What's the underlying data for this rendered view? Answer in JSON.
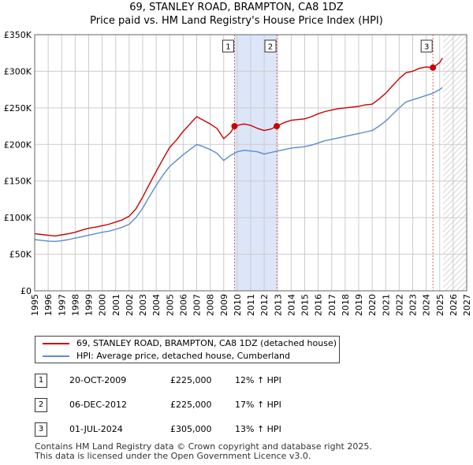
{
  "title_line1": "69, STANLEY ROAD, BRAMPTON, CA8 1DZ",
  "title_line2": "Price paid vs. HM Land Registry's House Price Index (HPI)",
  "colors": {
    "property": "#cc0000",
    "hpi": "#5b8ccc",
    "shade": "#dce6f8",
    "grid": "#cccccc"
  },
  "chart_data": {
    "type": "line",
    "title": "69, STANLEY ROAD, BRAMPTON, CA8 1DZ — Price paid vs. HM Land Registry's House Price Index (HPI)",
    "xlabel": "",
    "ylabel": "",
    "xlim": [
      1995,
      2027
    ],
    "ylim": [
      0,
      350000
    ],
    "y_ticks": [
      0,
      50000,
      100000,
      150000,
      200000,
      250000,
      300000,
      350000
    ],
    "y_tick_labels": [
      "£0",
      "£50K",
      "£100K",
      "£150K",
      "£200K",
      "£250K",
      "£300K",
      "£350K"
    ],
    "x_tick_labels": [
      "1995",
      "1996",
      "1997",
      "1998",
      "1999",
      "2000",
      "2001",
      "2002",
      "2003",
      "2004",
      "2005",
      "2006",
      "2007",
      "2008",
      "2009",
      "2010",
      "2011",
      "2012",
      "2013",
      "2014",
      "2015",
      "2016",
      "2017",
      "2018",
      "2019",
      "2020",
      "2021",
      "2022",
      "2023",
      "2024",
      "2025",
      "2026",
      "2027"
    ],
    "grid": true,
    "series": [
      {
        "name": "69, STANLEY ROAD, BRAMPTON, CA8 1DZ (detached house)",
        "points": [
          [
            1995.0,
            78000
          ],
          [
            1995.5,
            77000
          ],
          [
            1996.0,
            76000
          ],
          [
            1996.5,
            75000
          ],
          [
            1997.0,
            76500
          ],
          [
            1997.5,
            78000
          ],
          [
            1998.0,
            80000
          ],
          [
            1998.5,
            83000
          ],
          [
            1999.0,
            85500
          ],
          [
            1999.5,
            87000
          ],
          [
            2000.0,
            89000
          ],
          [
            2000.5,
            91000
          ],
          [
            2001.0,
            94000
          ],
          [
            2001.5,
            97000
          ],
          [
            2002.0,
            102000
          ],
          [
            2002.5,
            112000
          ],
          [
            2003.0,
            128000
          ],
          [
            2003.5,
            146000
          ],
          [
            2004.0,
            163000
          ],
          [
            2004.5,
            180000
          ],
          [
            2005.0,
            196000
          ],
          [
            2005.5,
            206000
          ],
          [
            2006.0,
            218000
          ],
          [
            2006.5,
            228000
          ],
          [
            2007.0,
            238000
          ],
          [
            2007.5,
            233000
          ],
          [
            2008.0,
            228000
          ],
          [
            2008.5,
            222000
          ],
          [
            2009.0,
            208000
          ],
          [
            2009.5,
            216000
          ],
          [
            2009.8,
            225000
          ],
          [
            2010.0,
            226000
          ],
          [
            2010.5,
            228000
          ],
          [
            2011.0,
            226000
          ],
          [
            2011.5,
            222000
          ],
          [
            2012.0,
            219000
          ],
          [
            2012.5,
            221000
          ],
          [
            2012.93,
            225000
          ],
          [
            2013.5,
            230000
          ],
          [
            2014.0,
            233000
          ],
          [
            2014.5,
            234000
          ],
          [
            2015.0,
            235000
          ],
          [
            2015.5,
            238000
          ],
          [
            2016.0,
            242000
          ],
          [
            2016.5,
            245000
          ],
          [
            2017.0,
            247000
          ],
          [
            2017.5,
            249000
          ],
          [
            2018.0,
            250000
          ],
          [
            2018.5,
            251000
          ],
          [
            2019.0,
            252000
          ],
          [
            2019.5,
            254000
          ],
          [
            2020.0,
            255000
          ],
          [
            2020.5,
            262000
          ],
          [
            2021.0,
            270000
          ],
          [
            2021.5,
            280000
          ],
          [
            2022.0,
            290000
          ],
          [
            2022.5,
            298000
          ],
          [
            2023.0,
            300000
          ],
          [
            2023.5,
            304000
          ],
          [
            2024.0,
            306000
          ],
          [
            2024.5,
            305000
          ],
          [
            2025.0,
            312000
          ],
          [
            2025.2,
            318000
          ]
        ]
      },
      {
        "name": "HPI: Average price, detached house, Cumberland",
        "points": [
          [
            1995.0,
            70000
          ],
          [
            1995.5,
            69000
          ],
          [
            1996.0,
            68000
          ],
          [
            1996.5,
            67500
          ],
          [
            1997.0,
            68500
          ],
          [
            1997.5,
            70000
          ],
          [
            1998.0,
            72000
          ],
          [
            1998.5,
            74000
          ],
          [
            1999.0,
            76000
          ],
          [
            1999.5,
            78000
          ],
          [
            2000.0,
            80000
          ],
          [
            2000.5,
            81500
          ],
          [
            2001.0,
            84000
          ],
          [
            2001.5,
            87000
          ],
          [
            2002.0,
            91000
          ],
          [
            2002.5,
            100000
          ],
          [
            2003.0,
            113000
          ],
          [
            2003.5,
            129000
          ],
          [
            2004.0,
            144000
          ],
          [
            2004.5,
            158000
          ],
          [
            2005.0,
            170000
          ],
          [
            2005.5,
            178000
          ],
          [
            2006.0,
            186000
          ],
          [
            2006.5,
            193000
          ],
          [
            2007.0,
            200000
          ],
          [
            2007.5,
            197000
          ],
          [
            2008.0,
            193000
          ],
          [
            2008.5,
            188000
          ],
          [
            2009.0,
            178000
          ],
          [
            2009.5,
            185000
          ],
          [
            2010.0,
            190000
          ],
          [
            2010.5,
            192000
          ],
          [
            2011.0,
            191000
          ],
          [
            2011.5,
            190000
          ],
          [
            2012.0,
            187000
          ],
          [
            2012.5,
            189000
          ],
          [
            2013.0,
            191000
          ],
          [
            2013.5,
            193000
          ],
          [
            2014.0,
            195000
          ],
          [
            2014.5,
            196000
          ],
          [
            2015.0,
            197000
          ],
          [
            2015.5,
            199000
          ],
          [
            2016.0,
            202000
          ],
          [
            2016.5,
            205000
          ],
          [
            2017.0,
            207000
          ],
          [
            2017.5,
            209000
          ],
          [
            2018.0,
            211000
          ],
          [
            2018.5,
            213000
          ],
          [
            2019.0,
            215000
          ],
          [
            2019.5,
            217000
          ],
          [
            2020.0,
            219000
          ],
          [
            2020.5,
            225000
          ],
          [
            2021.0,
            232000
          ],
          [
            2021.5,
            241000
          ],
          [
            2022.0,
            250000
          ],
          [
            2022.5,
            258000
          ],
          [
            2023.0,
            261000
          ],
          [
            2023.5,
            264000
          ],
          [
            2024.0,
            267000
          ],
          [
            2024.5,
            270000
          ],
          [
            2025.0,
            275000
          ],
          [
            2025.2,
            278000
          ]
        ]
      }
    ],
    "highlight_band": [
      2009.8,
      2012.93
    ],
    "forecast_start": 2025.25,
    "markers": [
      {
        "label": "1",
        "x": 2009.8,
        "y": 225000
      },
      {
        "label": "2",
        "x": 2012.93,
        "y": 225000
      },
      {
        "label": "3",
        "x": 2024.5,
        "y": 305000
      }
    ]
  },
  "legend": {
    "property_label": "69, STANLEY ROAD, BRAMPTON, CA8 1DZ (detached house)",
    "hpi_label": "HPI: Average price, detached house, Cumberland"
  },
  "sales": [
    {
      "num": "1",
      "date": "20-OCT-2009",
      "price": "£225,000",
      "hpi": "12% ↑ HPI"
    },
    {
      "num": "2",
      "date": "06-DEC-2012",
      "price": "£225,000",
      "hpi": "17% ↑ HPI"
    },
    {
      "num": "3",
      "date": "01-JUL-2024",
      "price": "£305,000",
      "hpi": "13% ↑ HPI"
    }
  ],
  "footer": {
    "line1": "Contains HM Land Registry data © Crown copyright and database right 2025.",
    "line2": "This data is licensed under the Open Government Licence v3.0."
  }
}
